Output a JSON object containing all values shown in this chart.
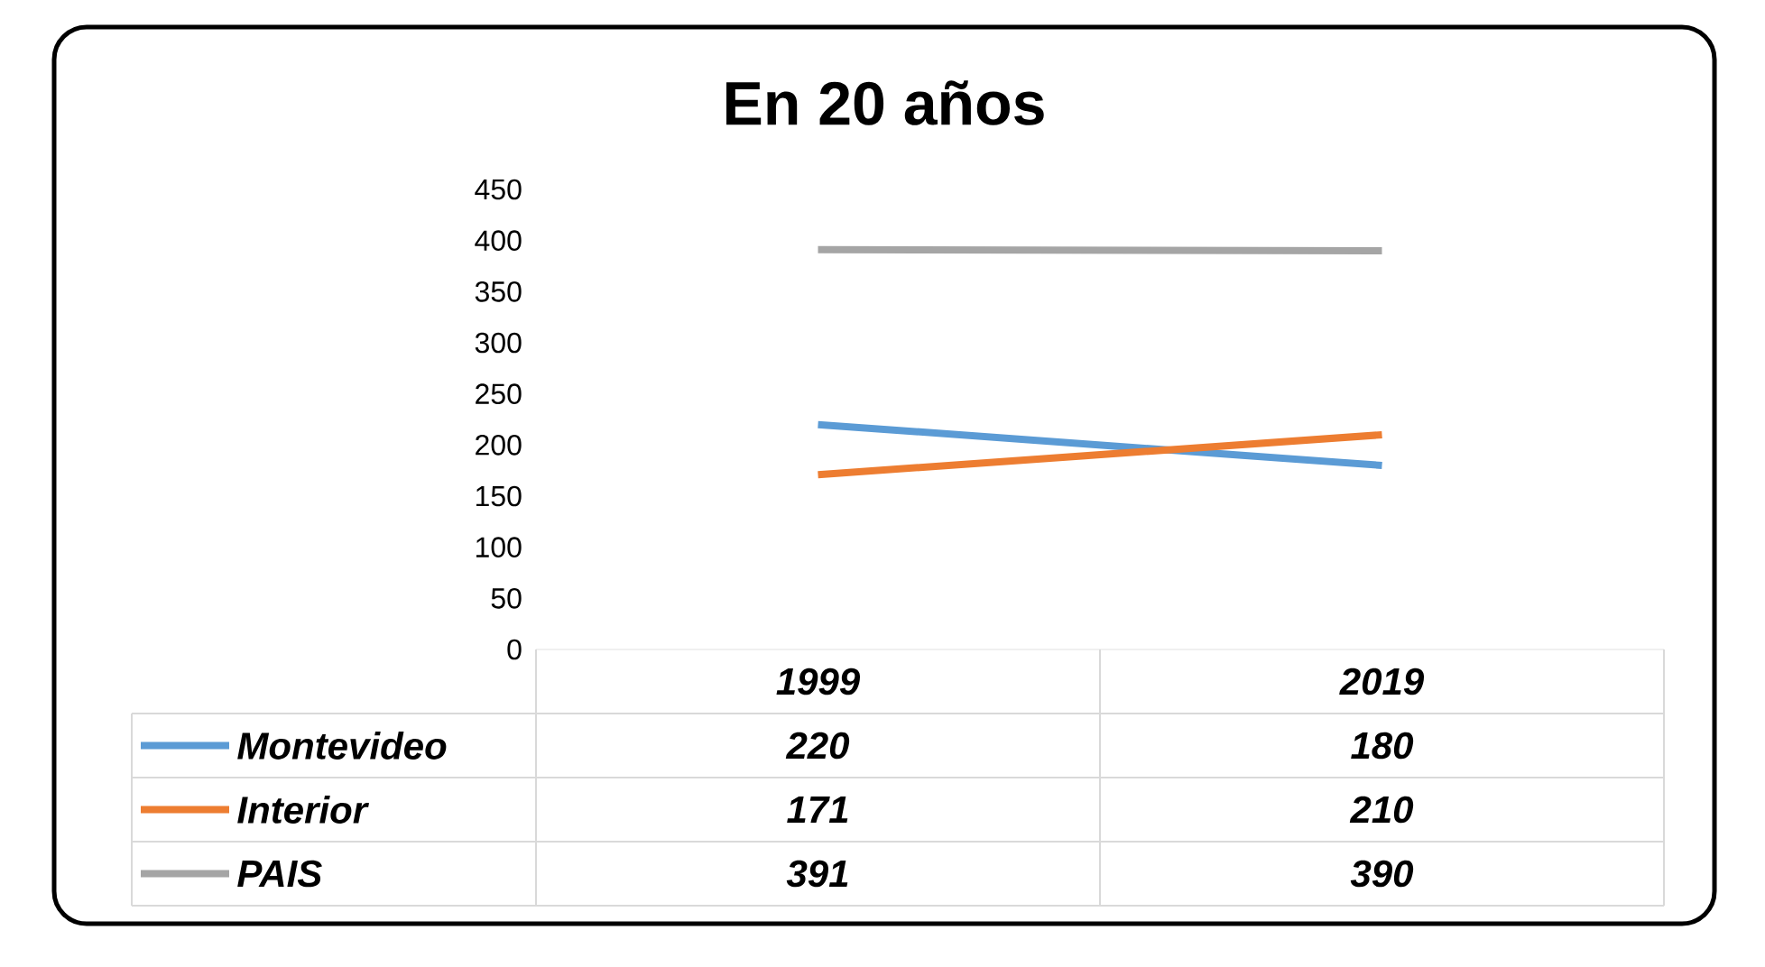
{
  "chart_data": {
    "type": "line",
    "title": "En 20 años",
    "categories": [
      "1999",
      "2019"
    ],
    "series": [
      {
        "name": "Montevideo",
        "color": "#5b9bd5",
        "values": [
          220,
          180
        ],
        "value_labels": [
          "220",
          "180"
        ]
      },
      {
        "name": "Interior",
        "color": "#ed7d31",
        "values": [
          171,
          210
        ],
        "value_labels": [
          "171",
          "210"
        ]
      },
      {
        "name": "PAIS",
        "color": "#a5a5a5",
        "values": [
          391,
          390
        ],
        "value_labels": [
          "391",
          "390"
        ]
      }
    ],
    "ylim": [
      0,
      450
    ],
    "yticks": [
      0,
      50,
      100,
      150,
      200,
      250,
      300,
      350,
      400,
      450
    ],
    "legend": "bottom",
    "marker": "none",
    "line_style": "solid"
  }
}
